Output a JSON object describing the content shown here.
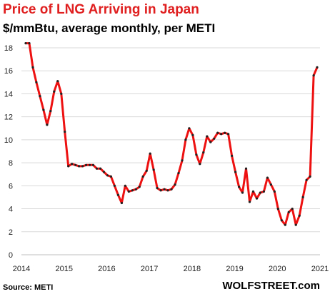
{
  "header": {
    "title": "Price of LNG Arriving in Japan",
    "subtitle": "$/mmBtu, average monthly, per METI"
  },
  "footer": {
    "source": "Source: METI",
    "brand": "WOLFSTREET.com"
  },
  "colors": {
    "line": "#ee1111",
    "marker": "#222222",
    "title": "#e02020",
    "grid": "#d9d9d9"
  },
  "chart_data": {
    "type": "line",
    "title": "Price of LNG Arriving in Japan",
    "subtitle": "$/mmBtu, average monthly, per METI",
    "xlabel": "",
    "ylabel": "",
    "xlim": [
      2014,
      2021
    ],
    "ylim": [
      0,
      18
    ],
    "x_ticks": [
      "2014",
      "2015",
      "2016",
      "2017",
      "2018",
      "2019",
      "2020",
      "2021"
    ],
    "y_ticks": [
      "0",
      "2",
      "4",
      "6",
      "8",
      "10",
      "12",
      "14",
      "16",
      "18"
    ],
    "grid": "horizontal",
    "legend": "none",
    "series": [
      {
        "x": [
          "2014-01",
          "2014-02",
          "2014-03",
          "2014-04",
          "2014-05",
          "2014-06",
          "2014-07",
          "2014-08",
          "2014-09",
          "2014-10",
          "2014-11",
          "2014-12",
          "2015-01",
          "2015-02",
          "2015-03",
          "2015-04",
          "2015-05",
          "2015-06",
          "2015-07",
          "2015-08",
          "2015-09",
          "2015-10",
          "2015-11",
          "2015-12",
          "2016-01",
          "2016-02",
          "2016-03",
          "2016-04",
          "2016-05",
          "2016-06",
          "2016-07",
          "2016-08",
          "2016-09",
          "2016-10",
          "2016-11",
          "2016-12",
          "2017-01",
          "2017-02",
          "2017-03",
          "2017-04",
          "2017-05",
          "2017-06",
          "2017-07",
          "2017-08",
          "2017-09",
          "2017-10",
          "2017-11",
          "2017-12",
          "2018-01",
          "2018-02",
          "2018-03",
          "2018-04",
          "2018-05",
          "2018-06",
          "2018-07",
          "2018-08",
          "2018-09",
          "2018-10",
          "2018-11",
          "2018-12",
          "2019-01",
          "2019-02",
          "2019-03",
          "2019-04",
          "2019-05",
          "2019-06",
          "2019-07",
          "2019-08",
          "2019-09",
          "2019-10",
          "2019-11",
          "2019-12",
          "2020-01",
          "2020-02",
          "2020-03",
          "2020-04",
          "2020-05",
          "2020-06",
          "2020-07",
          "2020-08",
          "2020-09",
          "2020-10",
          "2020-11",
          "2020-12",
          "2021-01"
        ],
        "values": [
          18.4,
          18.4,
          16.3,
          15.0,
          13.8,
          12.6,
          11.3,
          12.5,
          14.2,
          15.1,
          14.0,
          10.7,
          7.7,
          7.9,
          7.8,
          7.7,
          7.7,
          7.8,
          7.8,
          7.8,
          7.5,
          7.5,
          7.2,
          6.9,
          6.8,
          6.0,
          5.2,
          4.5,
          6.0,
          5.5,
          5.6,
          5.7,
          5.9,
          6.8,
          7.3,
          8.8,
          7.4,
          5.8,
          5.6,
          5.7,
          5.6,
          5.7,
          6.1,
          7.1,
          8.2,
          10.0,
          11.0,
          10.4,
          8.7,
          7.9,
          8.9,
          10.3,
          9.8,
          10.1,
          10.6,
          10.5,
          10.6,
          10.5,
          8.6,
          7.2,
          5.9,
          5.4,
          7.5,
          4.6,
          5.5,
          4.9,
          5.4,
          5.5,
          6.7,
          6.1,
          5.5,
          4.0,
          3.0,
          2.6,
          3.7,
          4.0,
          2.6,
          3.4,
          5.0,
          6.5,
          6.8,
          15.6,
          16.3,
          null,
          null
        ],
        "line_only_last": true
      }
    ]
  }
}
